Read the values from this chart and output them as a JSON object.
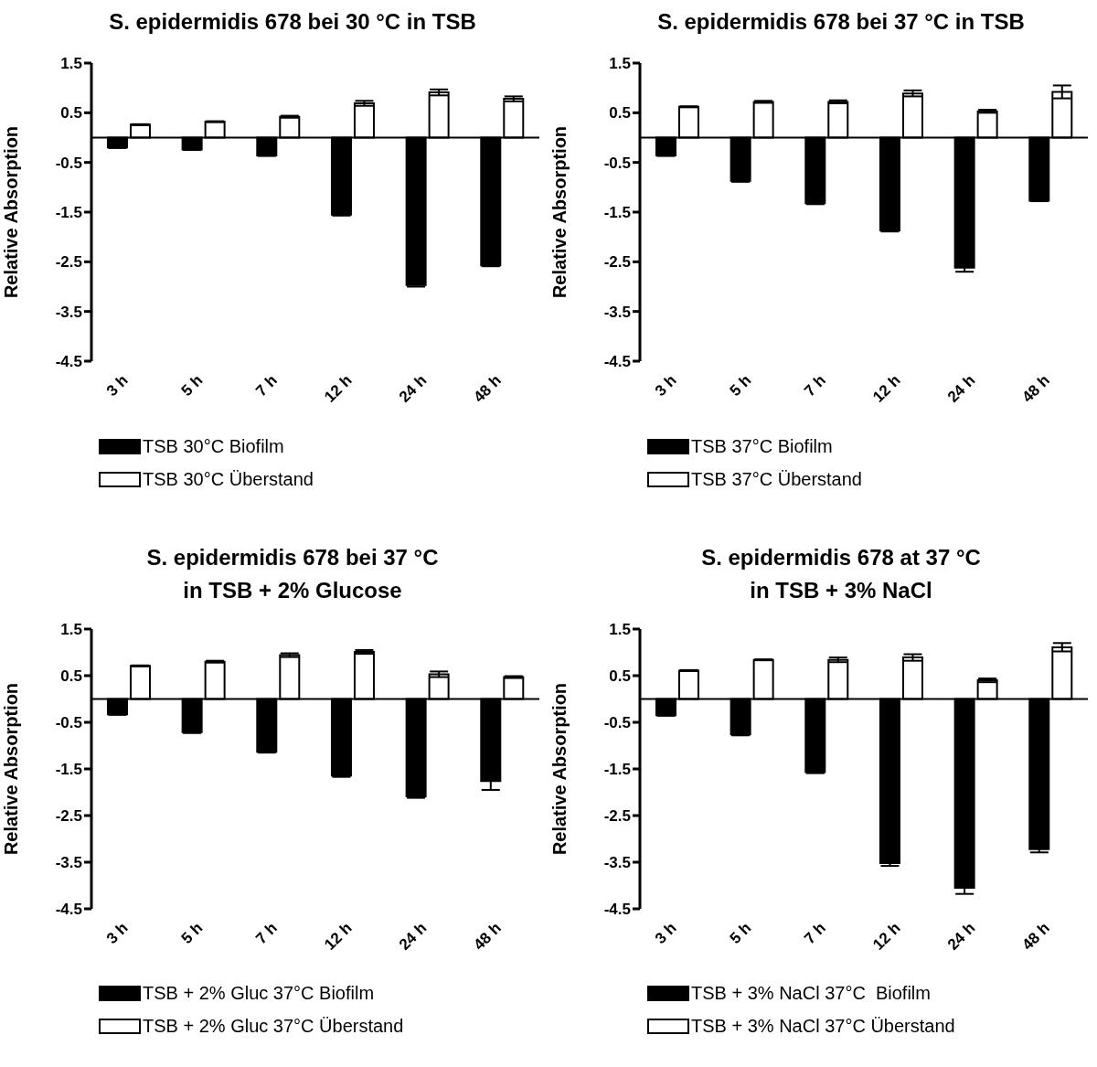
{
  "chart_data": [
    {
      "type": "bar",
      "title": "S. epidermidis 678 bei 30 °C in TSB",
      "ylabel": "Relative Absorption",
      "categories": [
        "3 h",
        "5 h",
        "7 h",
        "12 h",
        "24 h",
        "48 h"
      ],
      "series": [
        {
          "name": "TSB 30°C Biofilm",
          "color": "#000000",
          "values": [
            -0.2,
            -0.24,
            -0.36,
            -1.55,
            -2.97,
            -2.57
          ],
          "errors": [
            0.01,
            0.01,
            0.01,
            0.02,
            0.03,
            0.02
          ]
        },
        {
          "name": "TSB 30°C Überstand",
          "color": "#ffffff",
          "values": [
            0.26,
            0.32,
            0.42,
            0.69,
            0.91,
            0.78
          ],
          "errors": [
            0.01,
            0.01,
            0.02,
            0.05,
            0.06,
            0.05
          ]
        }
      ],
      "ylim": [
        -4.5,
        1.5
      ],
      "yticks": [
        1.5,
        0.5,
        -0.5,
        -1.5,
        -2.5,
        -3.5,
        -4.5
      ],
      "legend": "bottom"
    },
    {
      "type": "bar",
      "title": "S. epidermidis 678 bei 37 °C in TSB",
      "ylabel": "Relative Absorption",
      "categories": [
        "3 h",
        "5 h",
        "7 h",
        "12 h",
        "24 h",
        "48 h"
      ],
      "series": [
        {
          "name": "TSB 37°C Biofilm",
          "color": "#000000",
          "values": [
            -0.36,
            -0.87,
            -1.32,
            -1.87,
            -2.62,
            -1.27
          ],
          "errors": [
            0.01,
            0.02,
            0.02,
            0.02,
            0.08,
            0.01
          ]
        },
        {
          "name": "TSB 37°C Überstand",
          "color": "#ffffff",
          "values": [
            0.62,
            0.72,
            0.72,
            0.89,
            0.53,
            0.92
          ],
          "errors": [
            0.01,
            0.02,
            0.03,
            0.06,
            0.03,
            0.13
          ]
        }
      ],
      "ylim": [
        -4.5,
        1.5
      ],
      "yticks": [
        1.5,
        0.5,
        -0.5,
        -1.5,
        -2.5,
        -3.5,
        -4.5
      ],
      "legend": "bottom"
    },
    {
      "type": "bar",
      "title": "S. epidermidis 678 bei 37 °C\nin TSB + 2% Glucose",
      "ylabel": "Relative Absorption",
      "categories": [
        "3 h",
        "5 h",
        "7 h",
        "12 h",
        "24 h",
        "48 h"
      ],
      "series": [
        {
          "name": "TSB + 2% Gluc 37°C Biofilm",
          "color": "#000000",
          "values": [
            -0.33,
            -0.71,
            -1.13,
            -1.64,
            -2.09,
            -1.76
          ],
          "errors": [
            0.01,
            0.02,
            0.02,
            0.03,
            0.03,
            0.19
          ]
        },
        {
          "name": "TSB + 2% Gluc 37°C Überstand",
          "color": "#ffffff",
          "values": [
            0.71,
            0.8,
            0.94,
            1.01,
            0.53,
            0.47
          ],
          "errors": [
            0.01,
            0.02,
            0.04,
            0.04,
            0.06,
            0.02
          ]
        }
      ],
      "ylim": [
        -4.5,
        1.5
      ],
      "yticks": [
        1.5,
        0.5,
        -0.5,
        -1.5,
        -2.5,
        -3.5,
        -4.5
      ],
      "legend": "bottom"
    },
    {
      "type": "bar",
      "title": "S. epidermidis 678 at 37 °C\nin TSB + 3% NaCl",
      "ylabel": "Relative Absorption",
      "categories": [
        "3 h",
        "5 h",
        "7 h",
        "12 h",
        "24 h",
        "48 h"
      ],
      "series": [
        {
          "name": "TSB + 3% NaCl 37°C  Biofilm",
          "color": "#000000",
          "values": [
            -0.35,
            -0.76,
            -1.57,
            -3.52,
            -4.05,
            -3.22
          ],
          "errors": [
            0.01,
            0.02,
            0.02,
            0.06,
            0.13,
            0.07
          ]
        },
        {
          "name": "TSB + 3% NaCl 37°C Überstand",
          "color": "#ffffff",
          "values": [
            0.61,
            0.84,
            0.84,
            0.89,
            0.4,
            1.11
          ],
          "errors": [
            0.01,
            0.01,
            0.05,
            0.07,
            0.04,
            0.09
          ]
        }
      ],
      "ylim": [
        -4.5,
        1.5
      ],
      "yticks": [
        1.5,
        0.5,
        -0.5,
        -1.5,
        -2.5,
        -3.5,
        -4.5
      ],
      "legend": "bottom"
    }
  ]
}
